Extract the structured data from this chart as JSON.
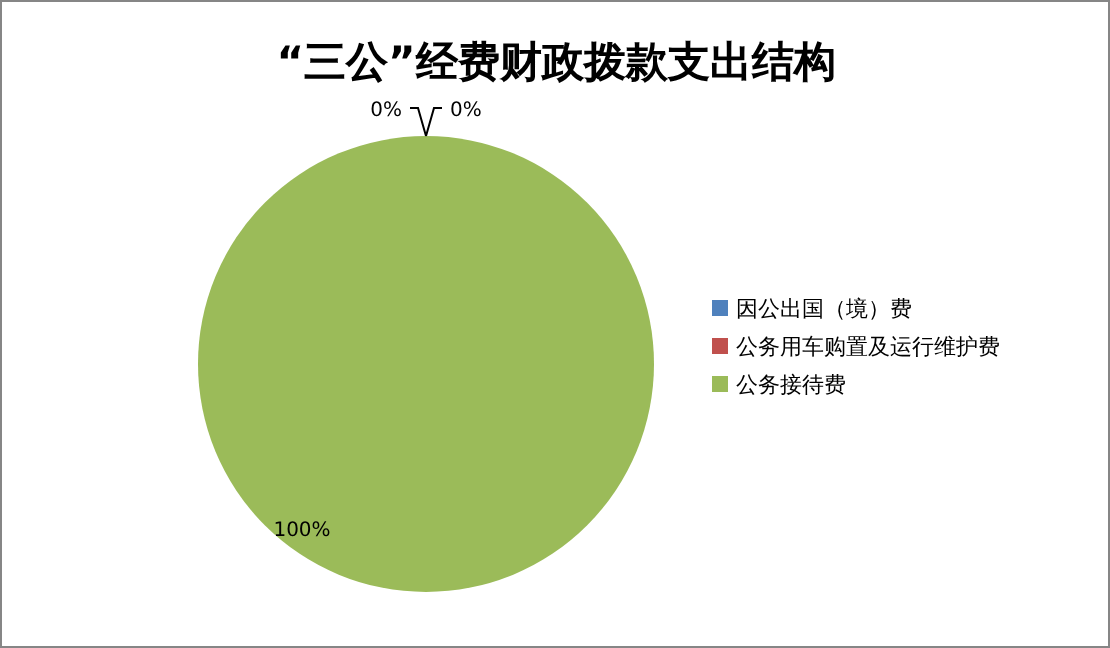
{
  "chart_data": {
    "type": "pie",
    "title": "“三公”经费财政拨款支出结构",
    "categories": [
      "因公出国（境）费",
      "公务用车购置及运行维护费",
      "公务接待费"
    ],
    "values": [
      0,
      0,
      100
    ],
    "colors": [
      "#4f81bd",
      "#c0504d",
      "#9bbb59"
    ],
    "value_labels": [
      "0%",
      "0%",
      "100%"
    ],
    "legend": "right"
  }
}
